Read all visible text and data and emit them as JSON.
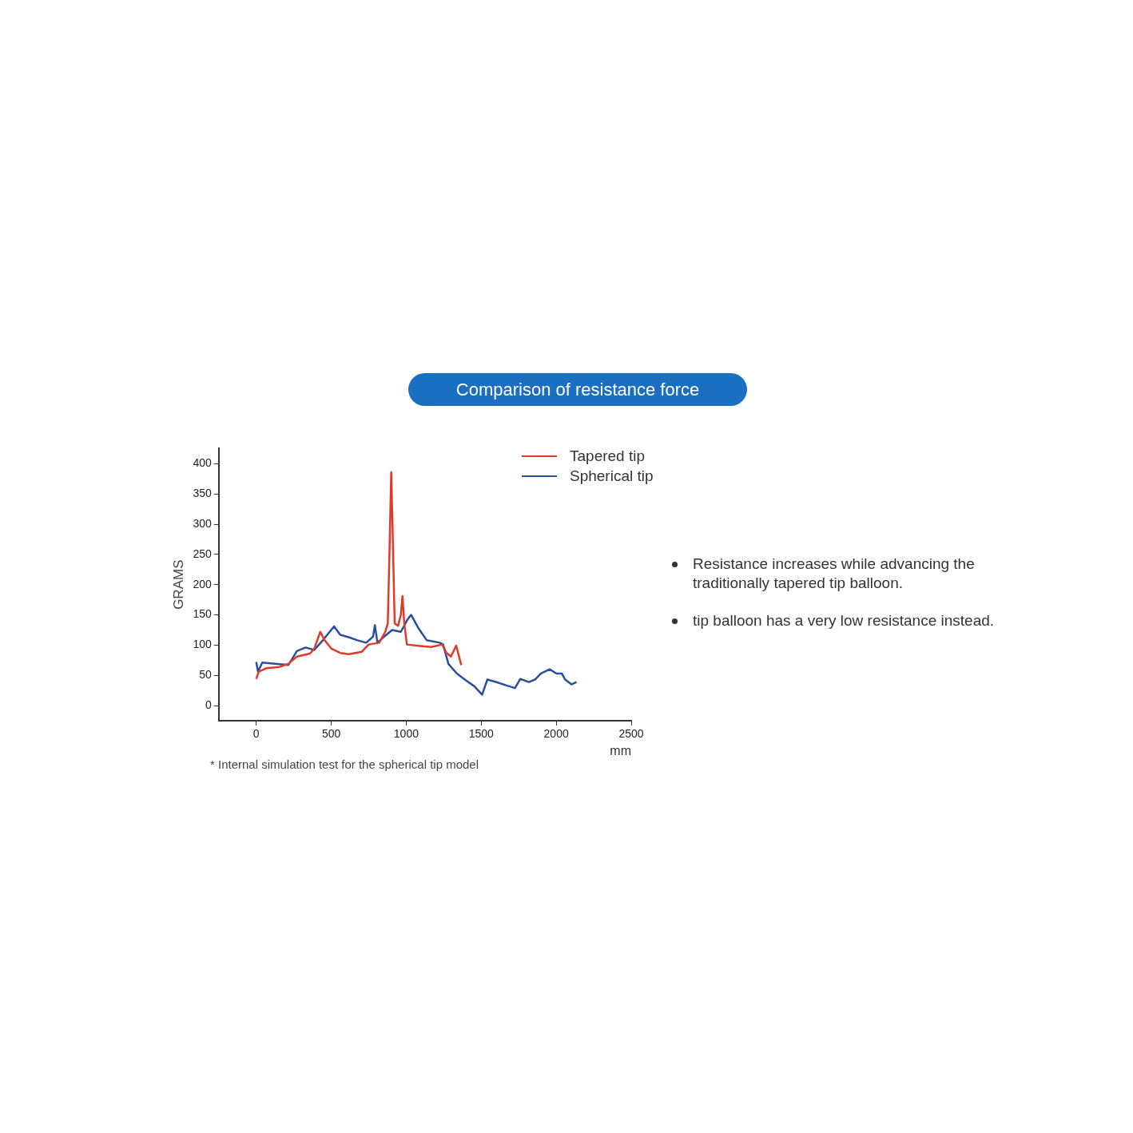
{
  "chart_data": {
    "type": "line",
    "title": "Comparison of resistance force",
    "xlabel": "mm",
    "ylabel": "GRAMS",
    "xlim": [
      -250,
      2500
    ],
    "xticks": [
      0,
      500,
      1000,
      1500,
      2000,
      2500
    ],
    "ylim": [
      -25,
      425
    ],
    "yticks": [
      0,
      50,
      100,
      150,
      200,
      250,
      300,
      350,
      400
    ],
    "grid": false,
    "legend": "top right",
    "marker": "none",
    "line_style": "solid",
    "annotations": [
      "* Internal simulation test for the spherical tip model",
      "Resistance increases while advancing the traditionally tapered tip balloon.",
      "tip balloon has a very low resistance instead."
    ],
    "series": [
      {
        "name": "Tapered tip",
        "color": "#e03a2a",
        "x": [
          0,
          17,
          69,
          156,
          214,
          271,
          358,
          387,
          427,
          456,
          502,
          560,
          617,
          704,
          750,
          820,
          860,
          877,
          889,
          900,
          912,
          923,
          946,
          964,
          975,
          987,
          1004,
          1079,
          1166,
          1240,
          1269,
          1298,
          1333,
          1367
        ],
        "values": [
          44,
          56,
          62,
          64,
          69,
          81,
          86,
          94,
          122,
          108,
          94,
          87,
          85,
          89,
          101,
          104,
          122,
          136,
          261,
          386,
          261,
          136,
          132,
          150,
          181,
          136,
          101,
          99,
          97,
          101,
          87,
          81,
          99,
          67
        ]
      },
      {
        "name": "Spherical tip",
        "color": "#2a4f9c",
        "x": [
          0,
          12,
          40,
          127,
          214,
          271,
          329,
          387,
          444,
          519,
          560,
          617,
          675,
          733,
          779,
          791,
          808,
          848,
          906,
          964,
          1010,
          1033,
          1079,
          1137,
          1223,
          1246,
          1281,
          1338,
          1396,
          1454,
          1506,
          1541,
          1598,
          1685,
          1725,
          1760,
          1818,
          1858,
          1898,
          1956,
          2002,
          2037,
          2060,
          2101,
          2135
        ],
        "values": [
          72,
          56,
          71,
          69,
          67,
          90,
          96,
          92,
          108,
          131,
          117,
          113,
          108,
          104,
          114,
          133,
          104,
          113,
          125,
          122,
          143,
          150,
          129,
          108,
          104,
          101,
          69,
          53,
          42,
          32,
          18,
          43,
          39,
          32,
          29,
          44,
          39,
          43,
          53,
          60,
          53,
          53,
          43,
          35,
          39
        ]
      }
    ]
  }
}
